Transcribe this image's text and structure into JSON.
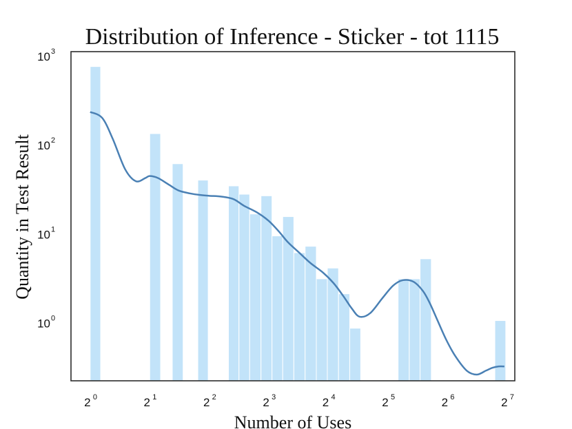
{
  "chart_data": {
    "type": "bar",
    "title": "Distribution of Inference - Sticker - tot 1115",
    "xlabel": "Number of Uses",
    "ylabel": "Quantity in Test Result",
    "x_scale": "log2",
    "y_scale": "log10",
    "xlim": [
      0.8,
      140
    ],
    "ylim": [
      0.2,
      1000
    ],
    "x_ticks": [
      {
        "base": "2",
        "exp": "0",
        "value": 1
      },
      {
        "base": "2",
        "exp": "1",
        "value": 2
      },
      {
        "base": "2",
        "exp": "2",
        "value": 4
      },
      {
        "base": "2",
        "exp": "3",
        "value": 8
      },
      {
        "base": "2",
        "exp": "4",
        "value": 16
      },
      {
        "base": "2",
        "exp": "5",
        "value": 32
      },
      {
        "base": "2",
        "exp": "6",
        "value": 64
      },
      {
        "base": "2",
        "exp": "7",
        "value": 128
      }
    ],
    "y_ticks": [
      {
        "base": "10",
        "exp": "0",
        "value": 1
      },
      {
        "base": "10",
        "exp": "1",
        "value": 10
      },
      {
        "base": "10",
        "exp": "2",
        "value": 100
      },
      {
        "base": "10",
        "exp": "3",
        "value": 1000
      }
    ],
    "bar_color": "#c2e3f9",
    "bar_edge_color": "#ffffff",
    "kde_color": "#4a80b4",
    "grid": false,
    "bars": [
      {
        "x_start": 1.0,
        "x_end": 1.13,
        "value": 680
      },
      {
        "x_start": 2.0,
        "x_end": 2.27,
        "value": 120
      },
      {
        "x_start": 2.6,
        "x_end": 2.95,
        "value": 55
      },
      {
        "x_start": 3.5,
        "x_end": 3.95,
        "value": 36
      },
      {
        "x_start": 5.0,
        "x_end": 5.65,
        "value": 31
      },
      {
        "x_start": 5.65,
        "x_end": 6.4,
        "value": 25
      },
      {
        "x_start": 6.4,
        "x_end": 7.3,
        "value": 15
      },
      {
        "x_start": 7.3,
        "x_end": 8.3,
        "value": 24
      },
      {
        "x_start": 8.3,
        "x_end": 9.4,
        "value": 8.5
      },
      {
        "x_start": 9.4,
        "x_end": 10.7,
        "value": 14
      },
      {
        "x_start": 10.7,
        "x_end": 12.2,
        "value": 5.5
      },
      {
        "x_start": 12.2,
        "x_end": 13.9,
        "value": 6.5
      },
      {
        "x_start": 13.9,
        "x_end": 15.8,
        "value": 2.8
      },
      {
        "x_start": 15.8,
        "x_end": 18.0,
        "value": 3.7
      },
      {
        "x_start": 18.0,
        "x_end": 20.5,
        "value": 1.9
      },
      {
        "x_start": 20.5,
        "x_end": 23.3,
        "value": 0.78
      },
      {
        "x_start": 36.0,
        "x_end": 41.0,
        "value": 2.8
      },
      {
        "x_start": 41.0,
        "x_end": 46.5,
        "value": 2.8
      },
      {
        "x_start": 46.5,
        "x_end": 53.0,
        "value": 4.7
      },
      {
        "x_start": 111.0,
        "x_end": 126.0,
        "value": 0.95
      }
    ],
    "kde": {
      "x": [
        1.0,
        1.15,
        1.3,
        1.5,
        1.7,
        1.9,
        2.0,
        2.2,
        2.5,
        2.8,
        3.2,
        3.6,
        4.0,
        4.6,
        5.3,
        6.0,
        7.0,
        8.0,
        9.0,
        10.0,
        11.5,
        13.0,
        15.0,
        17.0,
        19.0,
        21.0,
        23.0,
        26.0,
        30.0,
        34.0,
        38.0,
        43.0,
        48.0,
        52.0,
        57.0,
        63.0,
        70.0,
        80.0,
        90.0,
        100.0,
        108.0,
        116.0,
        124.0
      ],
      "y": [
        210,
        180,
        105,
        48,
        35,
        38,
        40,
        38,
        32,
        27.5,
        25.5,
        24.5,
        24,
        23.5,
        22,
        18.5,
        15.5,
        12.5,
        9.5,
        7.2,
        5.4,
        4.2,
        3.3,
        2.5,
        1.8,
        1.3,
        1.05,
        1.15,
        1.7,
        2.35,
        2.7,
        2.6,
        2.05,
        1.5,
        0.95,
        0.58,
        0.38,
        0.26,
        0.235,
        0.26,
        0.28,
        0.29,
        0.29
      ]
    }
  }
}
